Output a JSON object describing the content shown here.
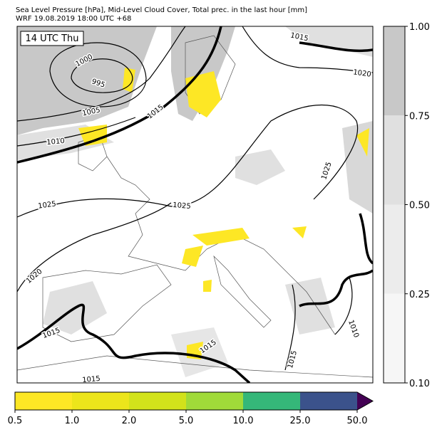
{
  "header": {
    "line1": "Sea Level Pressure [hPa], Mid-Level Cloud Cover, Total prec. in the last hour [mm]",
    "line2": "WRF 19.08.2019 18:00 UTC +68"
  },
  "map": {
    "time_label": "14 UTC Thu",
    "contour_labels": [
      "1015",
      "1020",
      "1000",
      "995",
      "1005",
      "1015",
      "1010",
      "1025",
      "1025",
      "1025",
      "1020",
      "1015",
      "1015",
      "1015",
      "1010",
      "1015"
    ]
  },
  "cloud_colorbar": {
    "labels": [
      "0.10",
      "0.25",
      "0.50",
      "0.75",
      "1.00"
    ],
    "colors": [
      "#f6f6f6",
      "#ececec",
      "#e0e0e0",
      "#c8c8c8"
    ]
  },
  "precip_colorbar": {
    "labels": [
      "0.5",
      "1.0",
      "2.0",
      "5.0",
      "10.0",
      "25.0",
      "50.0"
    ],
    "colors": [
      "#fde725",
      "#ece51b",
      "#d2e21b",
      "#a0da39",
      "#35b779",
      "#3b528b"
    ],
    "extend_color": "#440154"
  }
}
